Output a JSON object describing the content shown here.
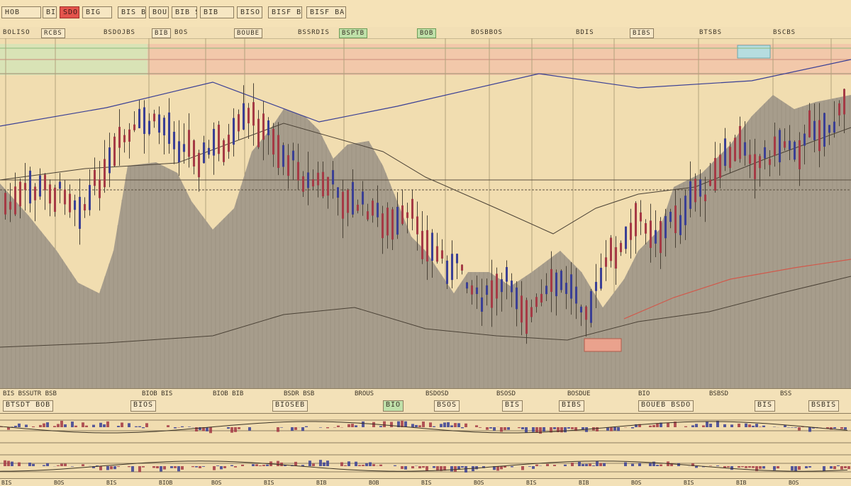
{
  "toolbar": {
    "buttons": [
      {
        "label": "HOB",
        "style": "normal"
      },
      {
        "label": "BIO",
        "style": "normal"
      },
      {
        "label": "SDO",
        "style": "red"
      },
      {
        "label": "BIG",
        "style": "normal"
      },
      {
        "label": "BIS BIB",
        "style": "normal"
      },
      {
        "label": "BOU",
        "style": "normal"
      },
      {
        "label": "BIB SDO",
        "style": "normal"
      },
      {
        "label": "BIB",
        "style": "normal"
      },
      {
        "label": "BISO",
        "style": "normal"
      },
      {
        "label": "BISF BA",
        "style": "normal"
      }
    ]
  },
  "subbar": {
    "items": [
      {
        "label": "BOLISO",
        "boxed": false,
        "green": false
      },
      {
        "label": "RCBS",
        "boxed": true,
        "green": false
      },
      {
        "label": "BSDOJBS",
        "boxed": false,
        "green": false
      },
      {
        "label": "BIB",
        "boxed": true,
        "green": false
      },
      {
        "label": "BOS",
        "boxed": false,
        "green": false
      },
      {
        "label": "BOUBE",
        "boxed": true,
        "green": false
      },
      {
        "label": "BSSRDIS",
        "boxed": false,
        "green": false
      },
      {
        "label": "BSPTB",
        "boxed": true,
        "green": true
      },
      {
        "label": "BOB",
        "boxed": true,
        "green": true
      },
      {
        "label": "BOSBBOS",
        "boxed": false,
        "green": false
      },
      {
        "label": "BDIS",
        "boxed": false,
        "green": false
      },
      {
        "label": "BIBS",
        "boxed": true,
        "green": false
      },
      {
        "label": "BTSBS",
        "boxed": false,
        "green": false
      },
      {
        "label": "BSCBS",
        "boxed": false,
        "green": false
      }
    ]
  },
  "status": {
    "row1": [
      "BIS BSSUTR BSB",
      "BIOB BIS",
      "BIOB BIB",
      "BSDR BSB",
      "BROUS",
      "BSDOSD",
      "BSOSD",
      "BOSDUE",
      "BIO",
      "BSBSD",
      "BSS"
    ],
    "row2": [
      {
        "label": "BTSDT BOB",
        "green": false
      },
      {
        "label": "BIOS",
        "green": false
      },
      {
        "label": "BIOSEB",
        "green": false
      },
      {
        "label": "BIO",
        "green": true
      },
      {
        "label": "BSOS",
        "green": false
      },
      {
        "label": "BIS",
        "green": false
      },
      {
        "label": "BIBS",
        "green": false
      },
      {
        "label": "BOUEB BSDO",
        "green": false
      },
      {
        "label": "BIS",
        "green": false
      },
      {
        "label": "BSBIS",
        "green": false
      }
    ]
  },
  "bottom_axis": {
    "labels": [
      "BIS",
      "BOS",
      "BIS",
      "BIOB",
      "BOS",
      "BIS",
      "BIB",
      "BOB",
      "BIS",
      "BOS",
      "BIS",
      "BIB",
      "BOS",
      "BIS",
      "BIB",
      "BOS"
    ]
  },
  "colors": {
    "background": "#f1ddb0",
    "area_fill": "#a79d8c",
    "bull_candle": "#3a3f95",
    "bear_candle": "#a53a45",
    "band_red": "#f2b6a6",
    "band_green": "#cfe5b9",
    "band_blue": "#b6dde0"
  }
}
